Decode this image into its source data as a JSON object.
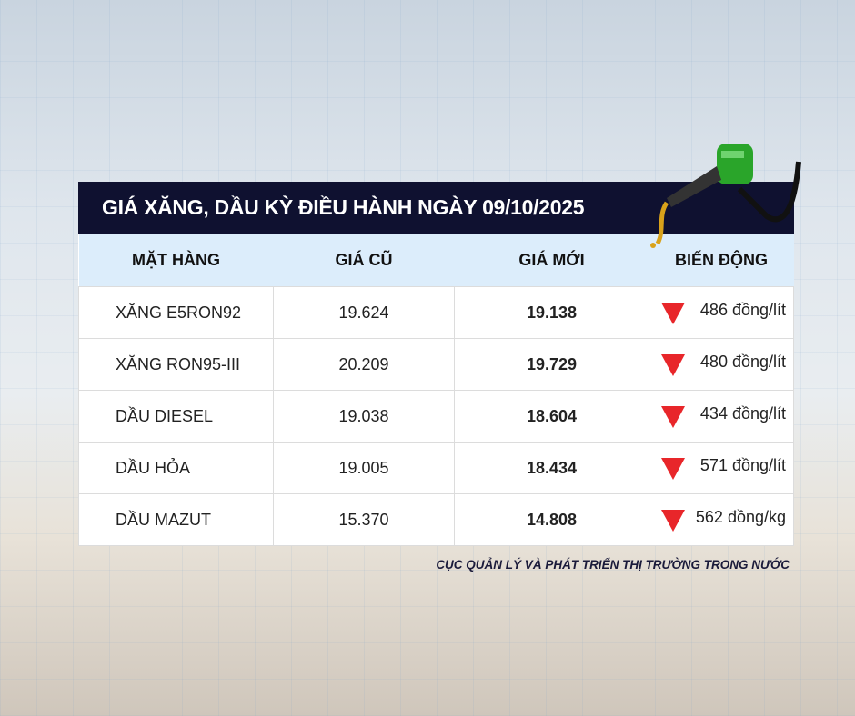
{
  "title": "GIÁ XĂNG, DẦU KỲ ĐIỀU HÀNH NGÀY 09/10/2025",
  "columns": [
    "MẶT HÀNG",
    "GIÁ CŨ",
    "GIÁ MỚI",
    "BIẾN ĐỘNG"
  ],
  "rows": [
    {
      "name": "XĂNG E5RON92",
      "old": "19.624",
      "new": "19.138",
      "change": "486 đồng/lít",
      "direction": "down"
    },
    {
      "name": "XĂNG RON95-III",
      "old": "20.209",
      "new": "19.729",
      "change": "480 đồng/lít",
      "direction": "down"
    },
    {
      "name": "DẦU DIESEL",
      "old": "19.038",
      "new": "18.604",
      "change": "434 đồng/lít",
      "direction": "down"
    },
    {
      "name": "DẦU HỎA",
      "old": "19.005",
      "new": "18.434",
      "change": "571 đồng/lít",
      "direction": "down"
    },
    {
      "name": "DẦU MAZUT",
      "old": "15.370",
      "new": "14.808",
      "change": "562 đồng/kg",
      "direction": "down"
    }
  ],
  "source": "CỤC QUẢN LÝ VÀ PHÁT TRIỂN THỊ TRƯỜNG TRONG NƯỚC",
  "colors": {
    "title_bg": "#0f1130",
    "header_bg": "#dcedfb",
    "down": "#e8262a"
  }
}
